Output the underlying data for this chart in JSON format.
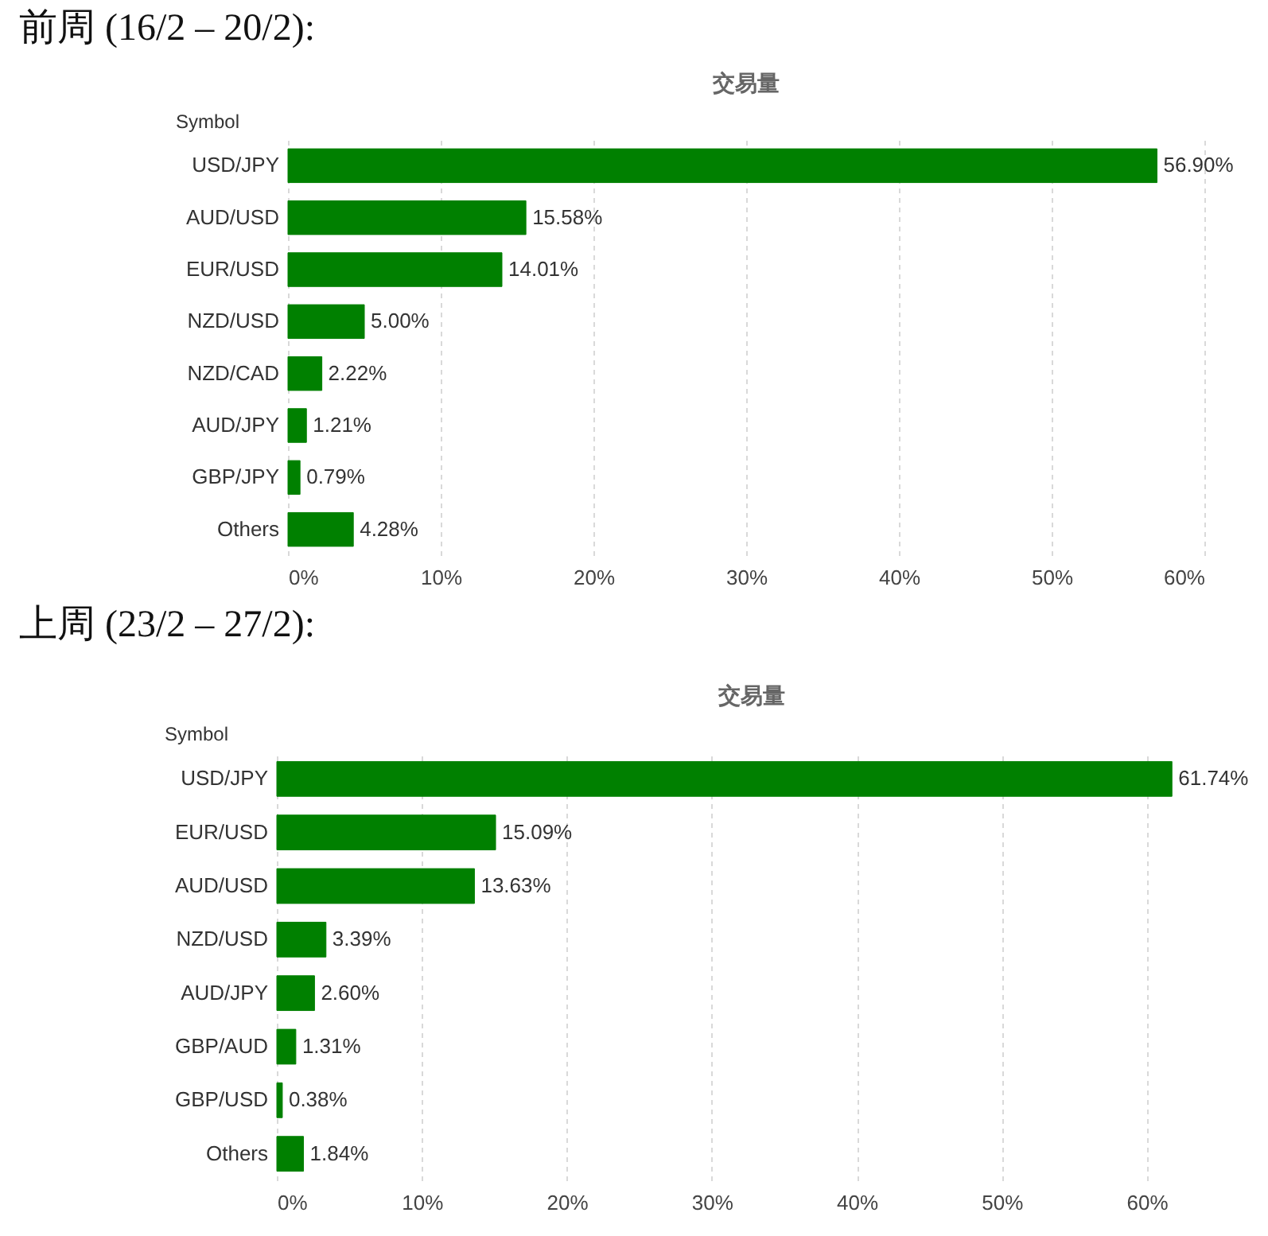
{
  "chart_data": [
    {
      "type": "bar",
      "orientation": "horizontal",
      "title": "交易量",
      "ylabel": "Symbol",
      "annotations": [
        "前周 (16/2 – 20/2):"
      ],
      "categories": [
        "USD/JPY",
        "AUD/USD",
        "EUR/USD",
        "NZD/USD",
        "NZD/CAD",
        "AUD/JPY",
        "GBP/JPY",
        "Others"
      ],
      "values": [
        56.9,
        15.58,
        14.01,
        5.0,
        2.22,
        1.21,
        0.79,
        4.28
      ],
      "value_labels": [
        "56.90%",
        "15.58%",
        "14.01%",
        "5.00%",
        "2.22%",
        "1.21%",
        "0.79%",
        "4.28%"
      ],
      "color": "#008000",
      "xlim": [
        0,
        60
      ],
      "xticks": [
        {
          "value": 0,
          "label": "0%"
        },
        {
          "value": 10,
          "label": "10%"
        },
        {
          "value": 20,
          "label": "20%"
        },
        {
          "value": 30,
          "label": "30%"
        },
        {
          "value": 40,
          "label": "40%"
        },
        {
          "value": 50,
          "label": "50%"
        },
        {
          "value": 60,
          "label": "60%"
        }
      ],
      "grid": "x"
    },
    {
      "type": "bar",
      "orientation": "horizontal",
      "title": "交易量",
      "ylabel": "Symbol",
      "annotations": [
        "上周 (23/2 – 27/2):"
      ],
      "categories": [
        "USD/JPY",
        "EUR/USD",
        "AUD/USD",
        "NZD/USD",
        "AUD/JPY",
        "GBP/AUD",
        "GBP/USD",
        "Others"
      ],
      "values": [
        61.74,
        15.09,
        13.63,
        3.39,
        2.6,
        1.31,
        0.38,
        1.84
      ],
      "value_labels": [
        "61.74%",
        "15.09%",
        "13.63%",
        "3.39%",
        "2.60%",
        "1.31%",
        "0.38%",
        "1.84%"
      ],
      "color": "#008000",
      "xlim": [
        0,
        62
      ],
      "xticks": [
        {
          "value": 0,
          "label": "0%"
        },
        {
          "value": 10,
          "label": "10%"
        },
        {
          "value": 20,
          "label": "20%"
        },
        {
          "value": 30,
          "label": "30%"
        },
        {
          "value": 40,
          "label": "40%"
        },
        {
          "value": 50,
          "label": "50%"
        },
        {
          "value": 60,
          "label": "60%"
        }
      ],
      "grid": "x"
    }
  ]
}
